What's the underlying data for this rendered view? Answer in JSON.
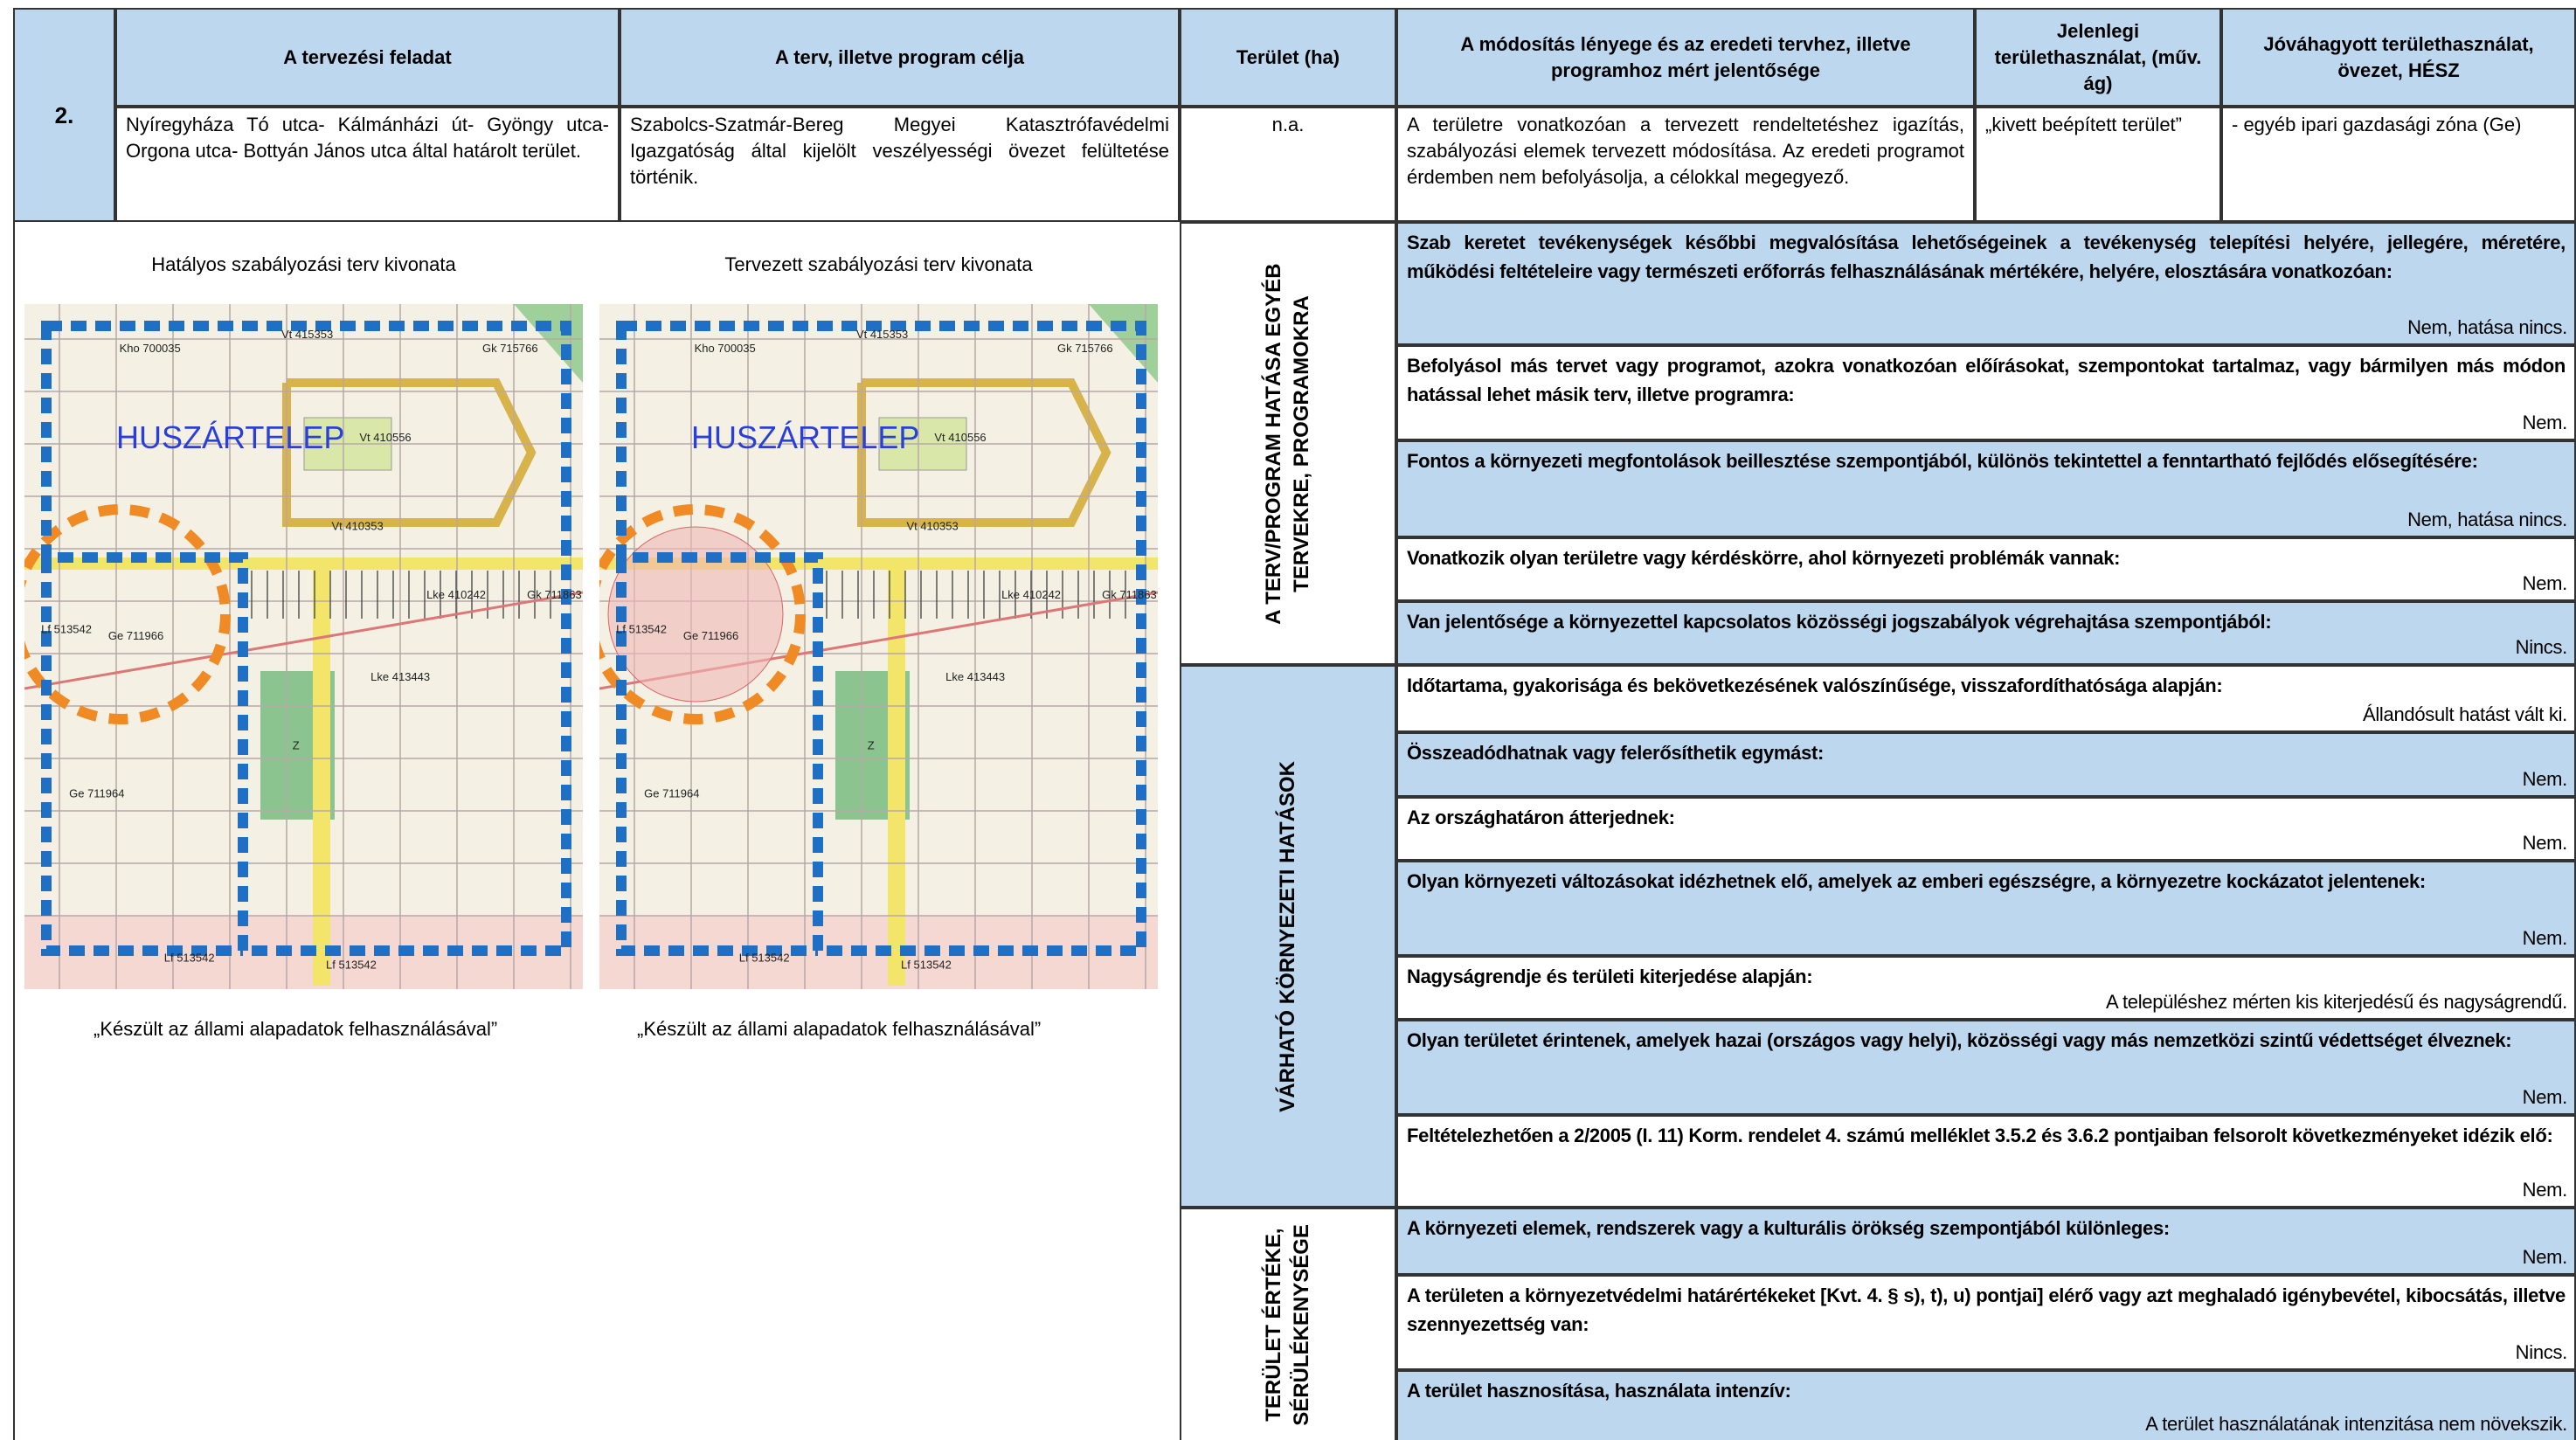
{
  "table": {
    "number": "2.",
    "headers": [
      "A tervezési feladat",
      "A terv, illetve program célja",
      "Terület (ha)",
      "A módosítás lényege és az eredeti tervhez, illetve programhoz mért jelentősége",
      "Jelenlegi területhasználat, (műv. ág)",
      "Jóváhagyott területhasználat, övezet, HÉSZ"
    ],
    "row": [
      "Nyíregyháza Tó utca- Kálmánházi út- Gyöngy utca-Orgona utca- Bottyán János utca által határolt terület.",
      "Szabolcs-Szatmár-Bereg Megyei Katasztrófavédelmi Igazgatóság által kijelölt veszélyességi övezet felültetése történik.",
      "n.a.",
      "A területre vonatkozóan a tervezett rendeltetéshez igazítás, szabályozási elemek tervezett módosítása. Az eredeti programot érdemben nem befolyásolja, a célokkal megegyező.",
      "„kivett beépített terület”",
      "- egyéb ipari gazdasági zóna (Ge)"
    ]
  },
  "maps": [
    {
      "title": "Hatályos szabályozási terv kivonata",
      "caption": "„Készült az állami alapadatok felhasználásával”",
      "place": "HUSZÁRTELEP"
    },
    {
      "title": "Tervezett szabályozási terv kivonata",
      "caption": "„Készült az állami alapadatok felhasználásával”",
      "place": "HUSZÁRTELEP"
    }
  ],
  "map_labels": [
    "Kho 700035",
    "Vt 415353",
    "Gk 715766",
    "Vt 410556",
    "Vt 410353",
    "Lke 410242",
    "Gk 711863",
    "Lf 513542",
    "Ge 711966",
    "Lke 413443",
    "Z",
    "Ge 711964",
    "Lf 513542",
    "Lf 513542"
  ],
  "sections": [
    {
      "label": "A TERV/PROGRAM HATÁSA EGYÉB TERVEKRE, PROGRAMOKRA",
      "items": [
        {
          "question": "Szab keretet tevékenységek későbbi megvalósítása lehetőségeinek a tevékenység telepítési helyére, jellegére, méretére, működési feltételeire vagy természeti erőforrás felhasználásának mértékére, helyére, elosztására vonatkozóan:",
          "answer": "Nem, hatása nincs."
        },
        {
          "question": "Befolyásol más tervet vagy programot, azokra vonatkozóan előírásokat, szempontokat tartalmaz, vagy bármilyen más módon hatással lehet másik terv, illetve programra:",
          "answer": "Nem."
        },
        {
          "question": "Fontos a környezeti megfontolások beillesztése szempontjából, különös tekintettel a fenntartható fejlődés elősegítésére:",
          "answer": "Nem, hatása nincs."
        },
        {
          "question": "Vonatkozik olyan területre vagy kérdéskörre, ahol környezeti problémák vannak:",
          "answer": "Nem."
        },
        {
          "question": "Van jelentősége a környezettel kapcsolatos közösségi jogszabályok végrehajtása szempontjából:",
          "answer": "Nincs."
        }
      ]
    },
    {
      "label": "VÁRHATÓ KÖRNYEZETI HATÁSOK",
      "items": [
        {
          "question": "Időtartama, gyakorisága és bekövetkezésének valószínűsége, visszafordíthatósága alapján:",
          "answer": "Állandósult hatást vált ki."
        },
        {
          "question": "Összeadódhatnak vagy felerősíthetik egymást:",
          "answer": "Nem."
        },
        {
          "question": "Az országhatáron átterjednek:",
          "answer": "Nem."
        },
        {
          "question": "Olyan környezeti változásokat idézhetnek elő, amelyek az emberi egészségre, a környezetre kockázatot jelentenek:",
          "answer": "Nem."
        },
        {
          "question": "Nagyságrendje és területi kiterjedése alapján:",
          "answer": "A településhez mérten kis kiterjedésű és nagyságrendű."
        },
        {
          "question": "Olyan területet érintenek, amelyek hazai (országos vagy helyi), közösségi vagy más nemzetközi szintű védettséget élveznek:",
          "answer": "Nem."
        },
        {
          "question": "Feltételezhetően a 2/2005 (I. 11) Korm. rendelet 4. számú melléklet 3.5.2 és 3.6.2 pontjaiban felsorolt következményeket idézik elő:",
          "answer": "Nem."
        }
      ]
    },
    {
      "label": "TERÜLET ÉRTÉKE, SÉRÜLÉKENYSÉGE",
      "items": [
        {
          "question": "A környezeti elemek, rendszerek vagy a kulturális örökség szempontjából különleges:",
          "answer": "Nem."
        },
        {
          "question": "A területen a környezetvédelmi határértékeket [Kvt. 4. § s), t), u) pontjai] elérő vagy azt meghaladó igénybevétel, kibocsátás, illetve szennyezettség van:",
          "answer": "Nincs."
        },
        {
          "question": "A terület hasznosítása, használata intenzív:",
          "answer": "A terület használatának intenzitása nem növekszik."
        }
      ]
    }
  ]
}
